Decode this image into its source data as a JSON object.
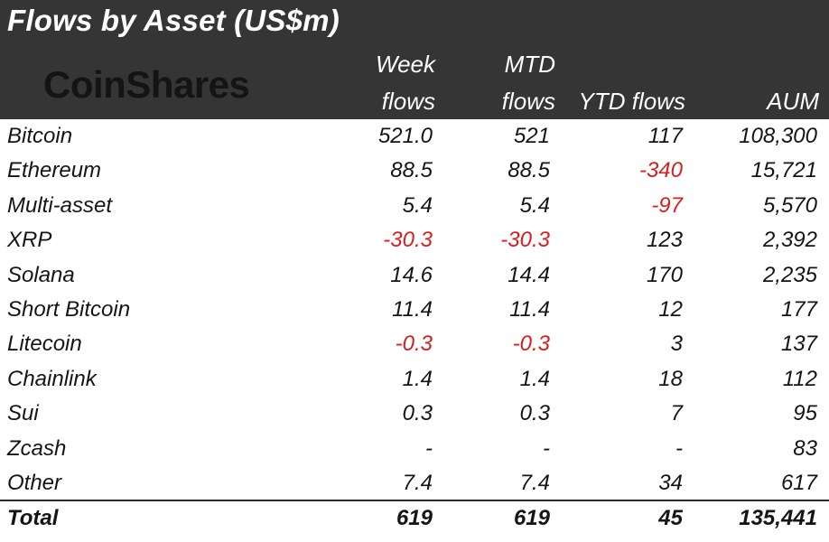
{
  "title": "Flows by Asset (US$m)",
  "logo_text": "CoinShares",
  "columns": {
    "week": [
      "Week",
      "flows"
    ],
    "mtd": [
      "MTD",
      "flows"
    ],
    "ytd": "YTD flows",
    "aum": "AUM"
  },
  "colors": {
    "header_bg": "#353535",
    "negative": "#d81e1e",
    "text": "#151515"
  },
  "chart_data": {
    "type": "table",
    "title": "Flows by Asset (US$m)",
    "columns": [
      "",
      "Week flows",
      "MTD flows",
      "YTD flows",
      "AUM"
    ],
    "rows": [
      {
        "asset": "Bitcoin",
        "week": "521.0",
        "mtd": "521",
        "ytd": "117",
        "aum": "108,300"
      },
      {
        "asset": "Ethereum",
        "week": "88.5",
        "mtd": "88.5",
        "ytd": "-340",
        "aum": "15,721"
      },
      {
        "asset": "Multi-asset",
        "week": "5.4",
        "mtd": "5.4",
        "ytd": "-97",
        "aum": "5,570"
      },
      {
        "asset": "XRP",
        "week": "-30.3",
        "mtd": "-30.3",
        "ytd": "123",
        "aum": "2,392"
      },
      {
        "asset": "Solana",
        "week": "14.6",
        "mtd": "14.4",
        "ytd": "170",
        "aum": "2,235"
      },
      {
        "asset": "Short Bitcoin",
        "week": "11.4",
        "mtd": "11.4",
        "ytd": "12",
        "aum": "177"
      },
      {
        "asset": "Litecoin",
        "week": "-0.3",
        "mtd": "-0.3",
        "ytd": "3",
        "aum": "137"
      },
      {
        "asset": "Chainlink",
        "week": "1.4",
        "mtd": "1.4",
        "ytd": "18",
        "aum": "112"
      },
      {
        "asset": "Sui",
        "week": "0.3",
        "mtd": "0.3",
        "ytd": "7",
        "aum": "95"
      },
      {
        "asset": "Zcash",
        "week": "-",
        "mtd": "-",
        "ytd": "-",
        "aum": "83"
      },
      {
        "asset": "Other",
        "week": "7.4",
        "mtd": "7.4",
        "ytd": "34",
        "aum": "617"
      }
    ],
    "total": {
      "asset": "Total",
      "week": "619",
      "mtd": "619",
      "ytd": "45",
      "aum": "135,441"
    }
  }
}
